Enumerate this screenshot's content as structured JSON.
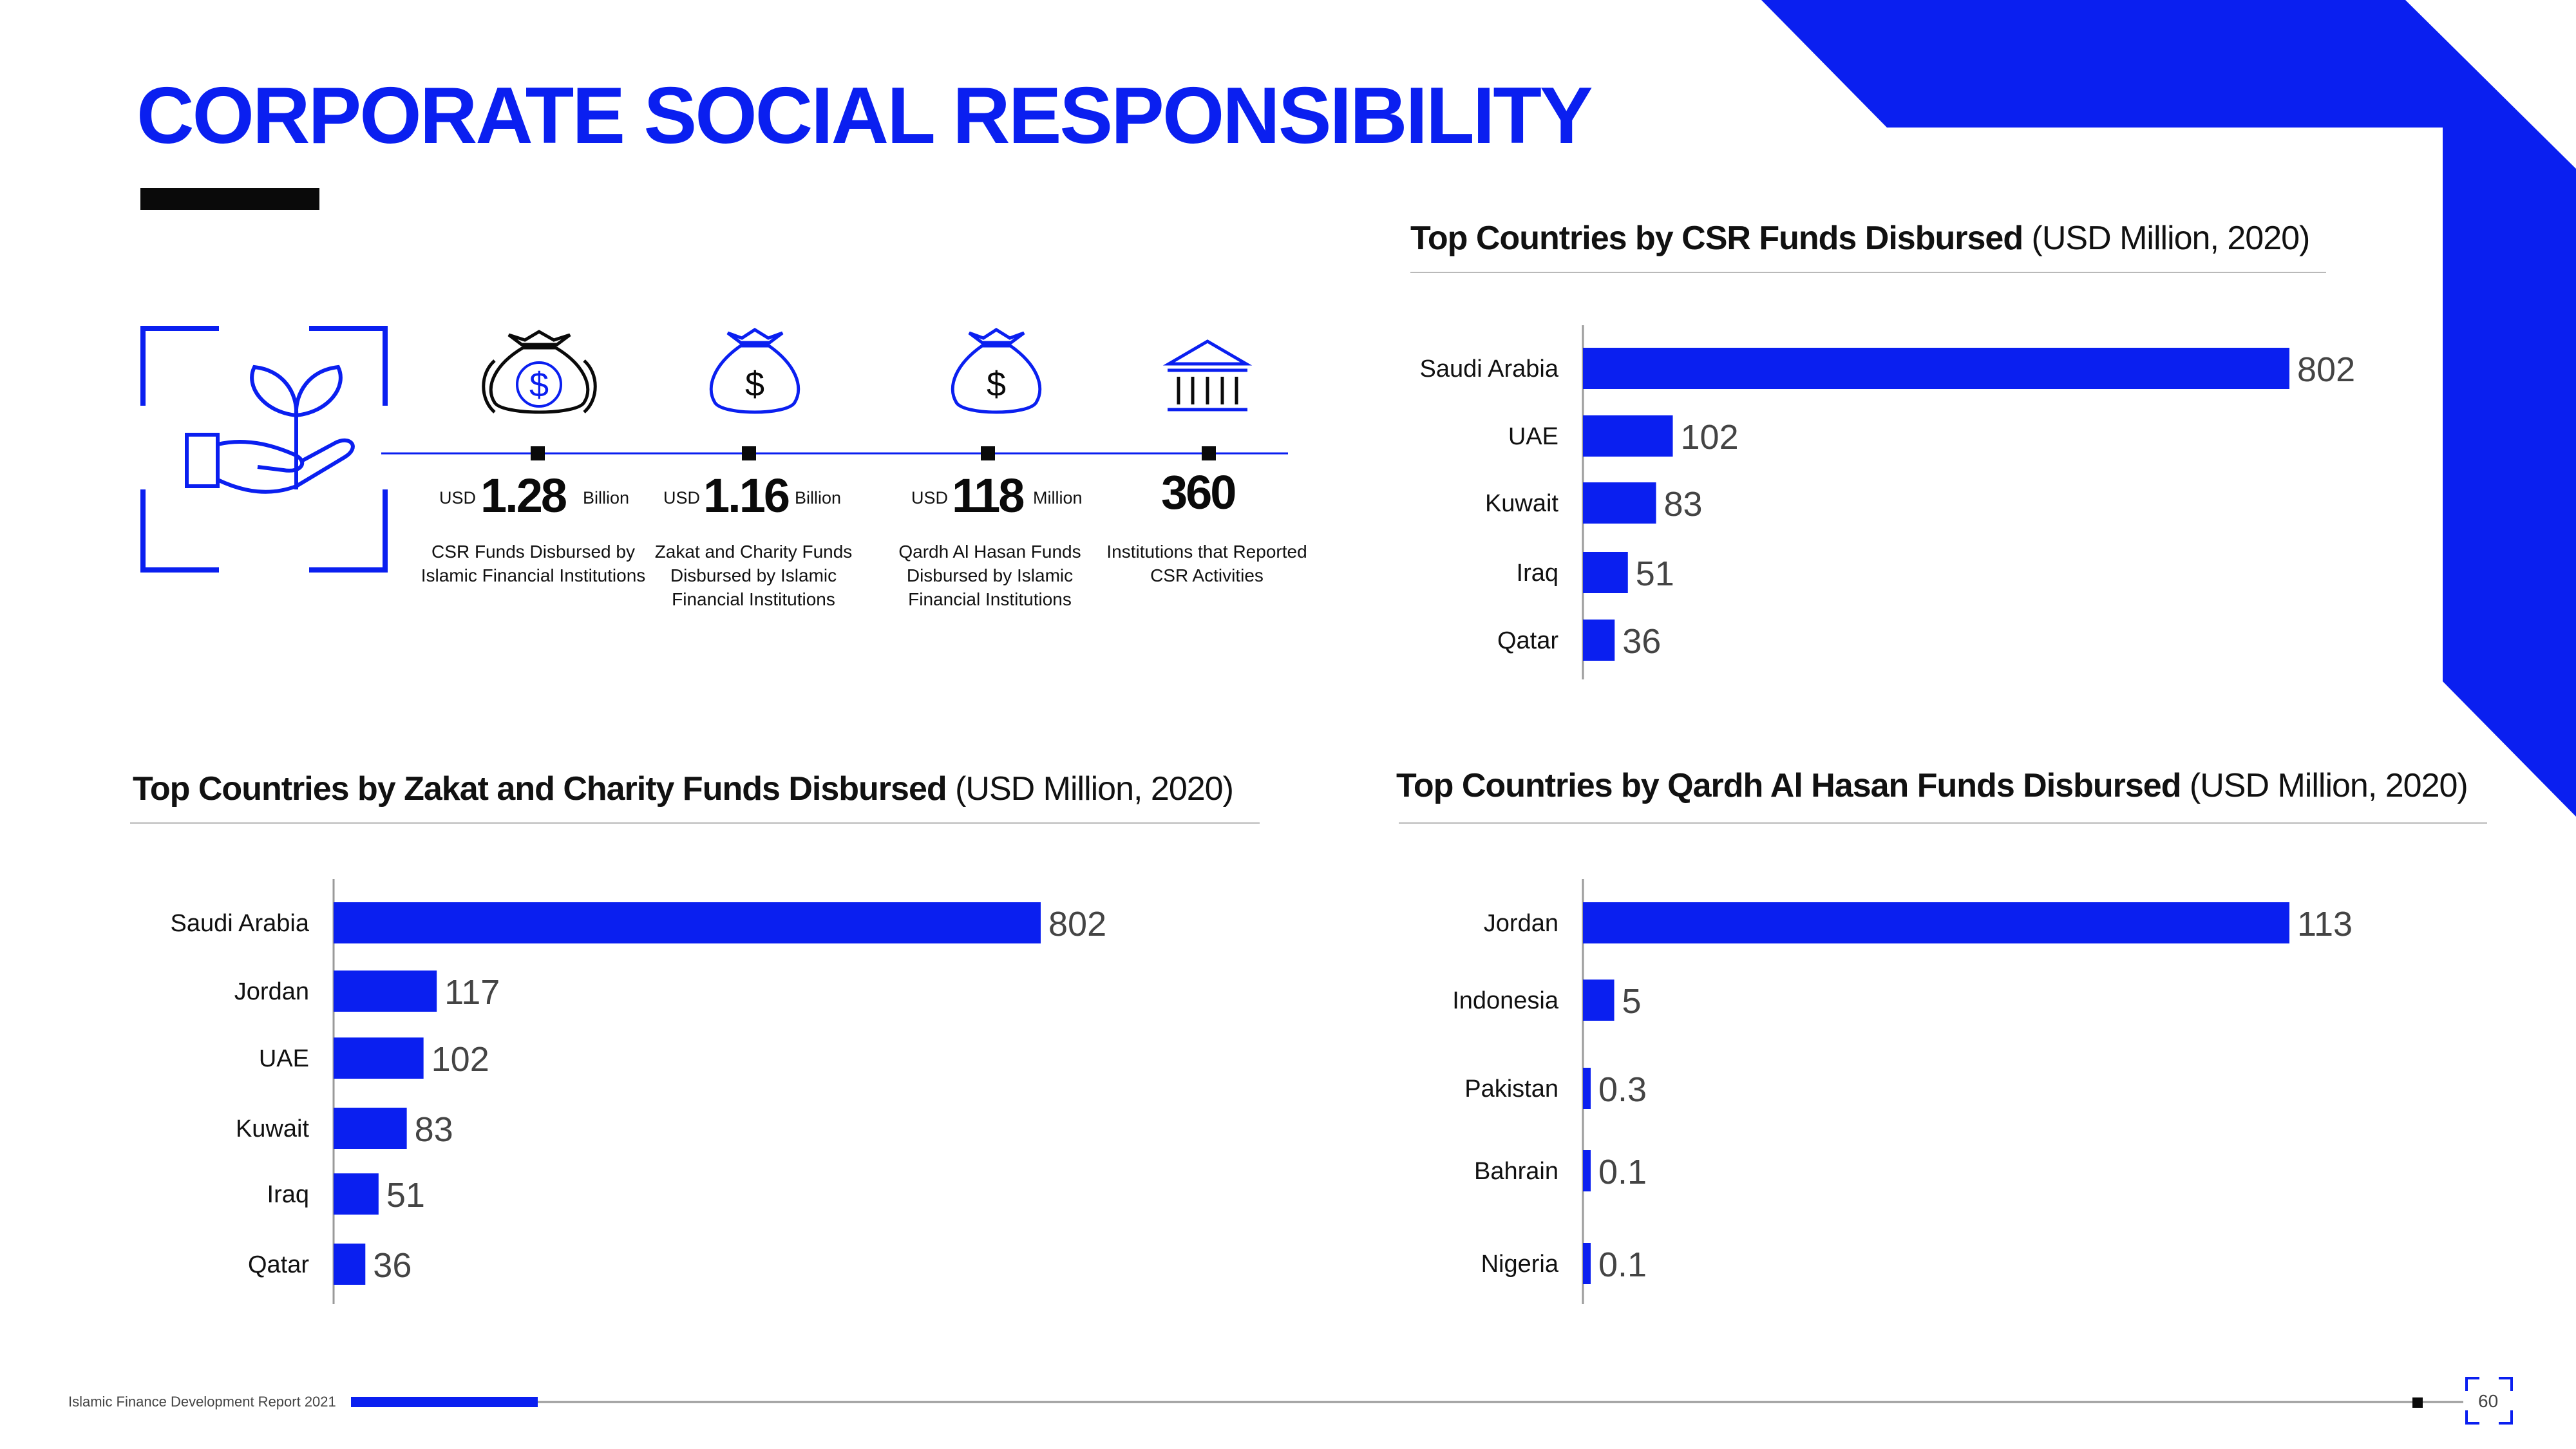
{
  "page": {
    "title": "CORPORATE SOCIAL RESPONSIBILITY",
    "footer_text": "Islamic Finance Development Report 2021",
    "page_number": "60"
  },
  "colors": {
    "accent": "#0a1ff0",
    "dark": "#0a0a0a"
  },
  "icons": [
    "hand-plant-icon",
    "money-bag-icon",
    "money-bag-icon",
    "money-bag-icon",
    "institution-icon"
  ],
  "stats": [
    {
      "prefix": "USD",
      "value": "1.28",
      "unit": "Billion",
      "description": "CSR Funds Disbursed by Islamic Financial Institutions"
    },
    {
      "prefix": "USD",
      "value": "1.16",
      "unit": "Billion",
      "description": "Zakat and Charity Funds Disbursed by Islamic Financial Institutions"
    },
    {
      "prefix": "USD",
      "value": "118",
      "unit": "Million",
      "description": "Qardh Al Hasan Funds Disbursed by Islamic Financial Institutions"
    },
    {
      "prefix": "",
      "value": "360",
      "unit": "",
      "description": "Institutions that Reported CSR Activities"
    }
  ],
  "chart_data": [
    {
      "type": "bar",
      "orientation": "horizontal",
      "title": "Top Countries by CSR Funds Disbursed",
      "subtitle": "(USD Million, 2020)",
      "categories": [
        "Saudi Arabia",
        "UAE",
        "Kuwait",
        "Iraq",
        "Qatar"
      ],
      "values": [
        802,
        102,
        83,
        51,
        36
      ],
      "value_labels": [
        "802",
        "102",
        "83",
        "51",
        "36"
      ],
      "xlim": [
        0,
        802
      ],
      "grid": false,
      "legend": "none",
      "bar_color": "#0a1ff0"
    },
    {
      "type": "bar",
      "orientation": "horizontal",
      "title": "Top Countries by Zakat and Charity Funds Disbursed",
      "subtitle": "(USD Million, 2020)",
      "categories": [
        "Saudi Arabia",
        "Jordan",
        "UAE",
        "Kuwait",
        "Iraq",
        "Qatar"
      ],
      "values": [
        802,
        117,
        102,
        83,
        51,
        36
      ],
      "value_labels": [
        "802",
        "117",
        "102",
        "83",
        "51",
        "36"
      ],
      "xlim": [
        0,
        802
      ],
      "grid": false,
      "legend": "none",
      "bar_color": "#0a1ff0"
    },
    {
      "type": "bar",
      "orientation": "horizontal",
      "title": "Top Countries by Qardh Al Hasan Funds Disbursed",
      "subtitle": "(USD Million, 2020)",
      "categories": [
        "Jordan",
        "Indonesia",
        "Pakistan",
        "Bahrain",
        "Nigeria"
      ],
      "values": [
        113,
        5,
        0.3,
        0.1,
        0.1
      ],
      "value_labels": [
        "113",
        "5",
        "0.3",
        "0.1",
        "0.1"
      ],
      "xlim": [
        0,
        113
      ],
      "grid": false,
      "legend": "none",
      "bar_color": "#0a1ff0"
    }
  ]
}
